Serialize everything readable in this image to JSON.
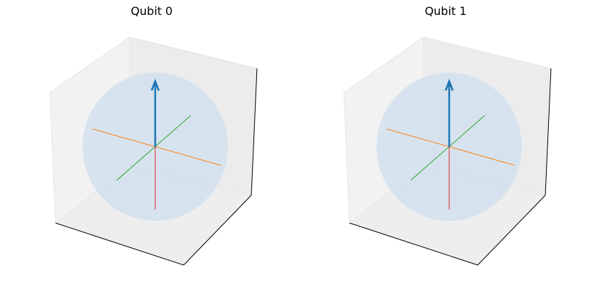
{
  "qubits": [
    {
      "title": "Qubit 0"
    },
    {
      "title": "Qubit 1"
    }
  ],
  "colors": {
    "state_vector": "#1f77b4",
    "x_axis": "#ff7f0e",
    "y_axis": "#2ca02c",
    "z_axis": "#d62728",
    "sphere_fill": "#cfe0ee",
    "pane_fill": "#f2f2f2"
  }
}
